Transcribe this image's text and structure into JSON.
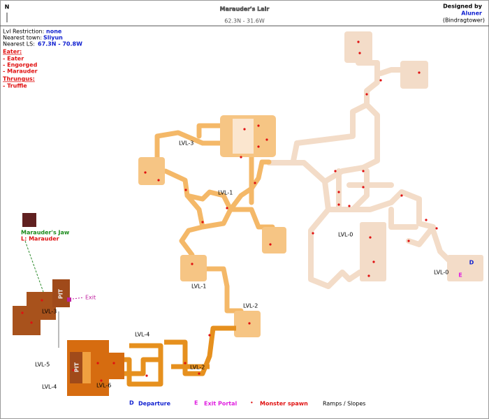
{
  "header": {
    "compass": "N",
    "title": "Marauder's Lair",
    "coords": "62.3N - 31.6W",
    "credit_label": "Designed by",
    "credit_name": "Aluner",
    "credit_server": "(Bindragtower)"
  },
  "info": {
    "restriction_label": "Lvl Restriction:",
    "restriction_value": "none",
    "town_label": "Nearest town:",
    "town_value": "Sliyun",
    "ls_label": "Nearest LS:",
    "ls_value": "67.3N - 70.8W",
    "group1": "Eater:",
    "group1_items": [
      "- Eater",
      "- Engorged",
      "- Marauder"
    ],
    "group2": "Thrungus:",
    "group2_items": [
      "- Truffle"
    ]
  },
  "boss": {
    "name": "Marauder's Jaw",
    "detail": "L: Marauder"
  },
  "map": {
    "labels": [
      "LVL-3",
      "LVL-1",
      "LVL-0",
      "LVL-0",
      "LVL-1",
      "LVL-2",
      "LVL-3",
      "LVL-5",
      "LVL-6",
      "LVL-4",
      "LVL-4",
      "LVL-2"
    ],
    "pits": [
      "PIT",
      "PIT"
    ],
    "exit": "Exit",
    "departure_mark": "D",
    "exit_mark": "E"
  },
  "legend": {
    "departure_mark": "D",
    "departure": "Departure",
    "exit_mark": "E",
    "exit": "Exit Portal",
    "spawn_mark": "•",
    "spawn": "Monster spawn",
    "ramps": "Ramps / Slopes"
  }
}
